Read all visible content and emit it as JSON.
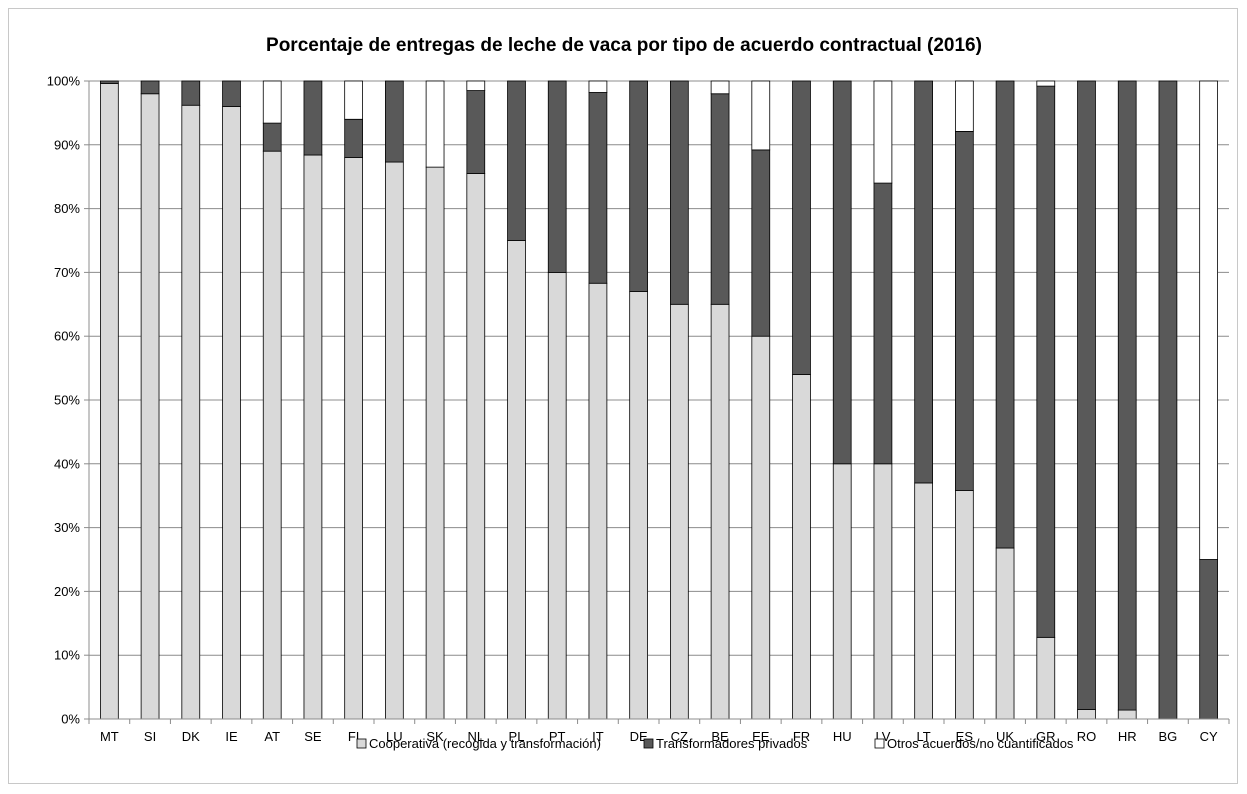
{
  "chart_data": {
    "type": "bar",
    "stacked": true,
    "title": "Porcentaje de entregas de leche de vaca por tipo de acuerdo contractual (2016)",
    "xlabel": "",
    "ylabel": "",
    "ylim": [
      0,
      100
    ],
    "y_ticks": [
      "0%",
      "10%",
      "20%",
      "30%",
      "40%",
      "50%",
      "60%",
      "70%",
      "80%",
      "90%",
      "100%"
    ],
    "grid": true,
    "legend_position": "bottom",
    "categories": [
      "MT",
      "SI",
      "DK",
      "IE",
      "AT",
      "SE",
      "FI",
      "LU",
      "SK",
      "NL",
      "PL",
      "PT",
      "IT",
      "DE",
      "CZ",
      "BE",
      "EE",
      "FR",
      "HU",
      "LV",
      "LT",
      "ES",
      "UK",
      "GR",
      "RO",
      "HR",
      "BG",
      "CY"
    ],
    "series": [
      {
        "name": "Cooperativa (recogida y transformación)",
        "color": "#d9d9d9",
        "values": [
          99.6,
          98,
          96.2,
          96,
          89,
          88.4,
          88,
          87.3,
          86.5,
          85.5,
          75,
          70,
          68.3,
          67,
          65,
          65,
          60,
          54,
          40,
          40,
          37,
          35.8,
          26.8,
          12.8,
          1.5,
          1.4,
          0,
          0
        ]
      },
      {
        "name": "Transformadores privados",
        "color": "#595959",
        "values": [
          0.4,
          2,
          3.8,
          4,
          4.4,
          11.6,
          6,
          12.7,
          0,
          13,
          25,
          30,
          29.9,
          33,
          35,
          33,
          29.2,
          46,
          60,
          44,
          63,
          56.3,
          73.2,
          86.4,
          98.5,
          98.6,
          100,
          25
        ]
      },
      {
        "name": "Otros acuerdos/no cuantificados",
        "color": "#ffffff",
        "values": [
          0,
          0,
          0,
          0,
          6.6,
          0,
          6,
          0,
          13.5,
          1.5,
          0,
          0,
          1.8,
          0,
          0,
          2,
          10.8,
          0,
          0,
          16,
          0,
          7.9,
          0,
          0.8,
          0,
          0,
          0,
          75
        ]
      }
    ]
  }
}
